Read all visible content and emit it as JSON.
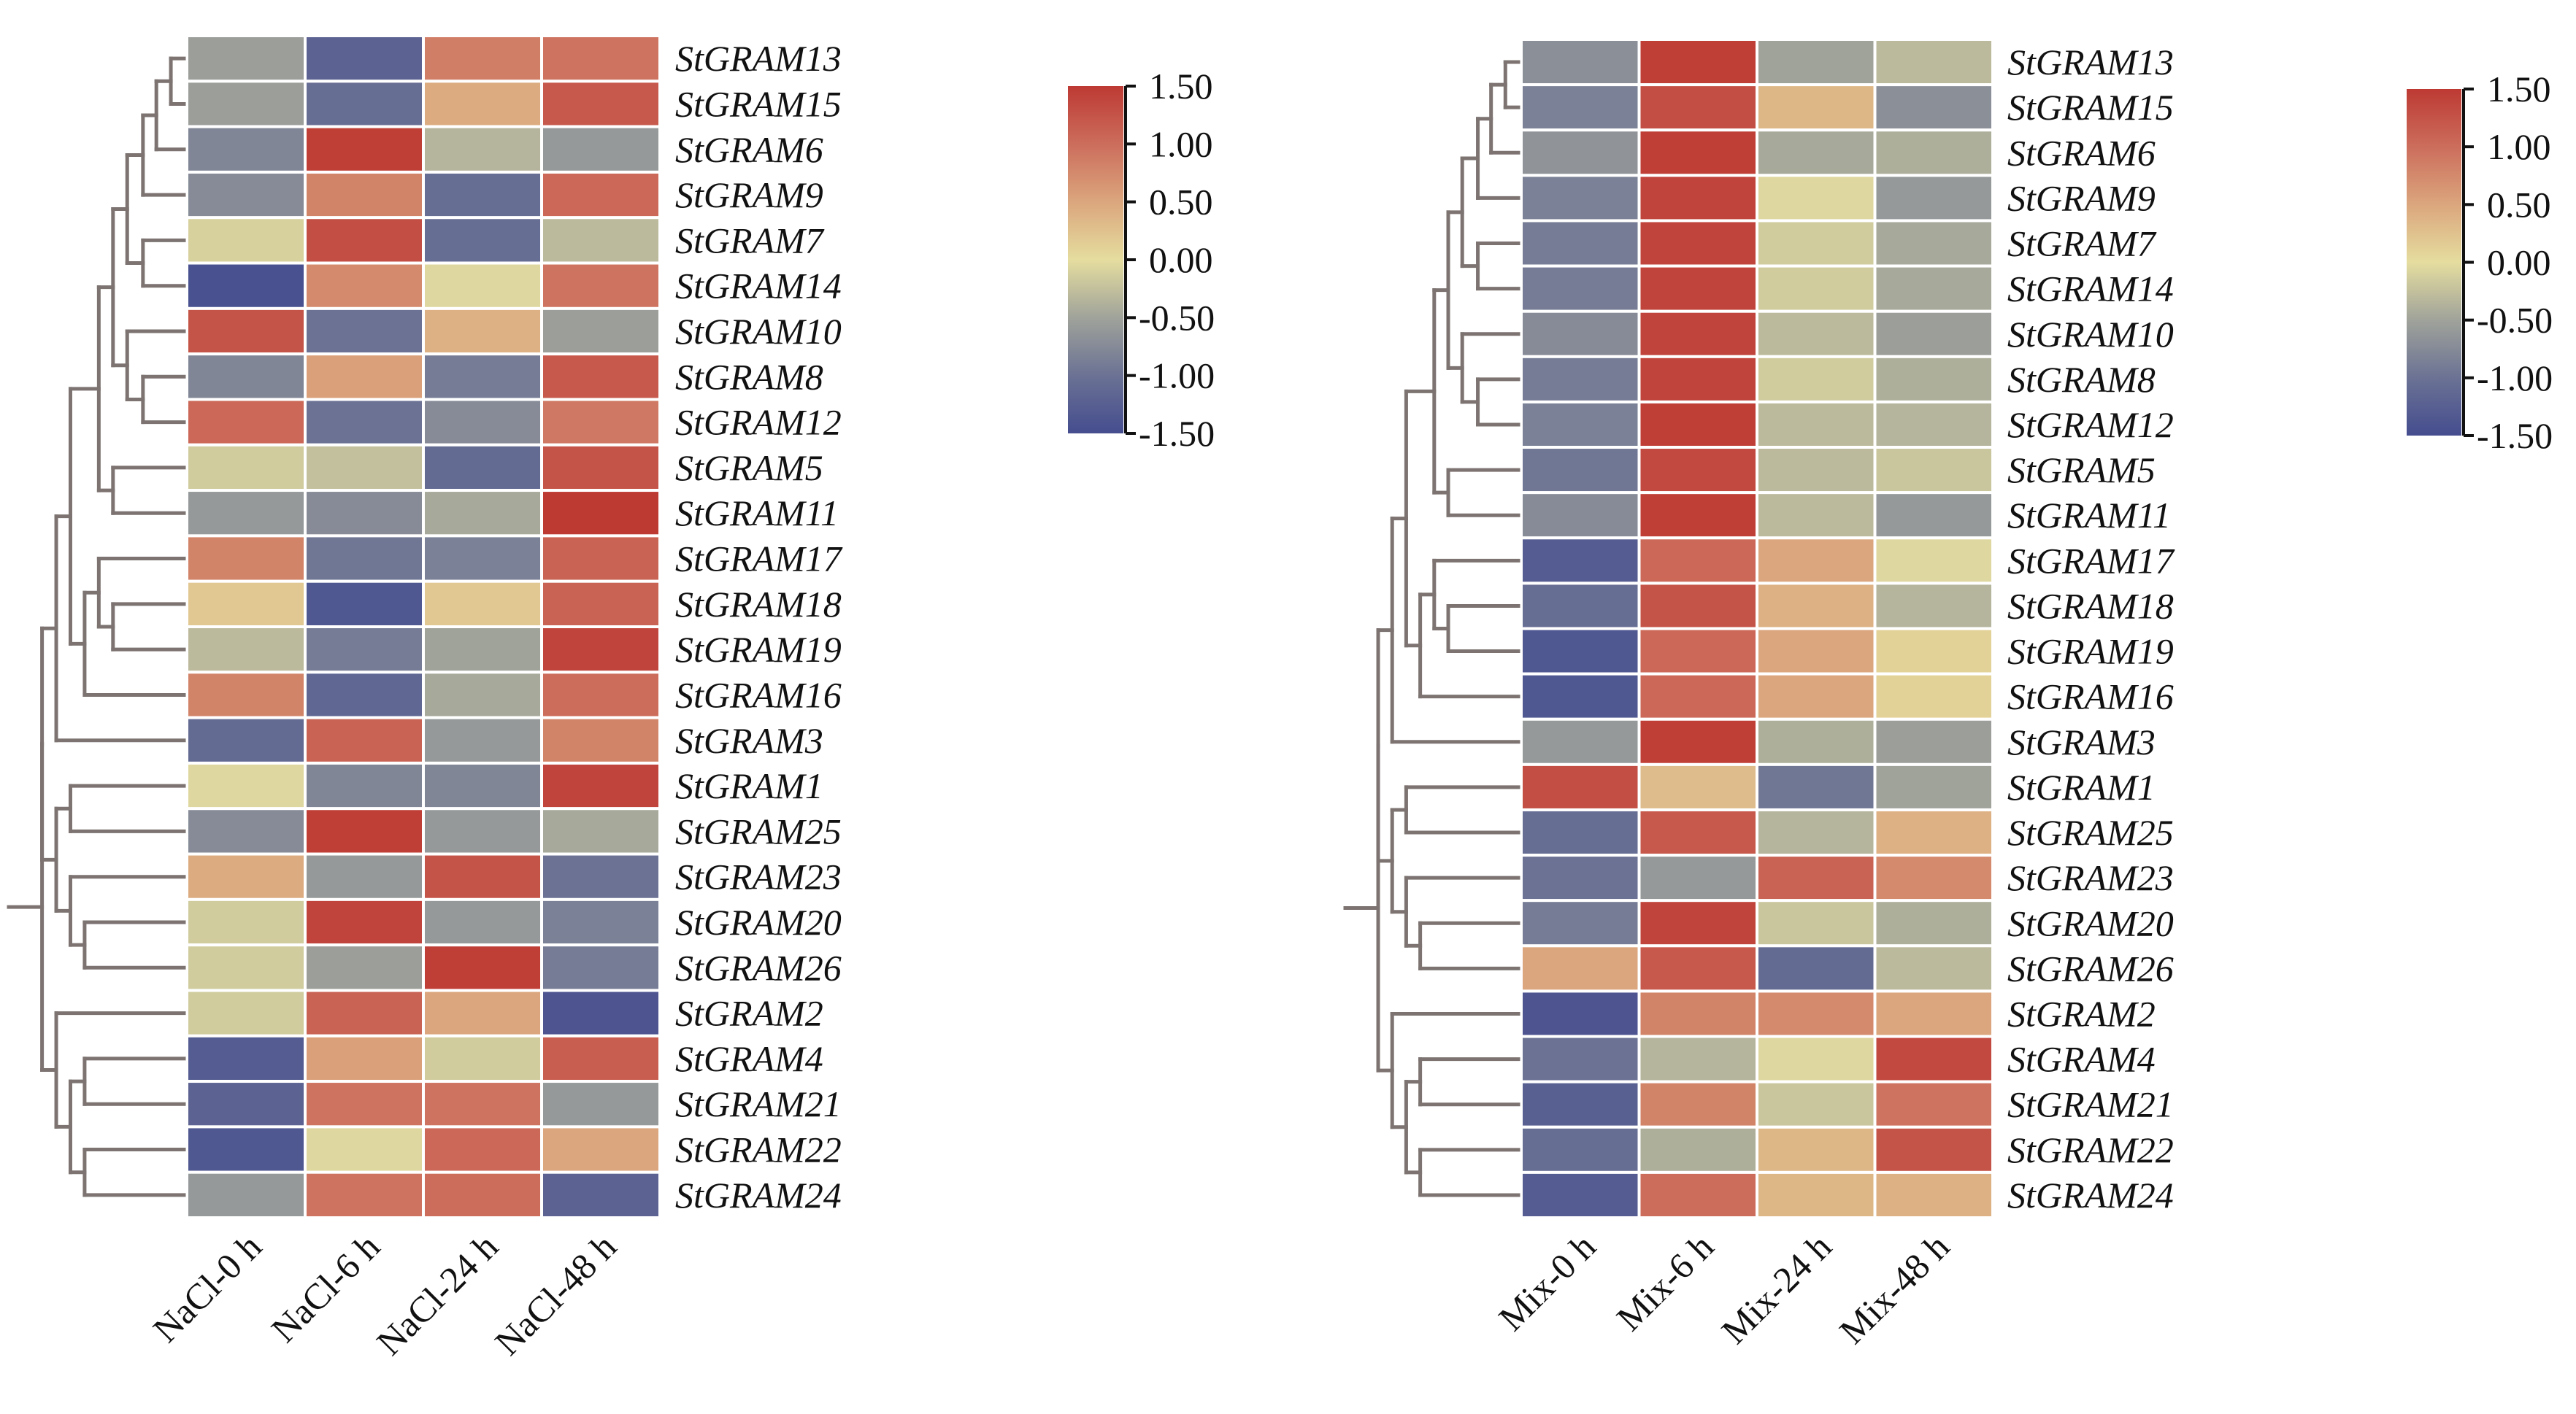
{
  "chart_data": [
    {
      "type": "heatmap",
      "title": "",
      "condition": "NaCl",
      "columns": [
        "NaCl-0 h",
        "NaCl-6 h",
        "NaCl-24 h",
        "NaCl-48 h"
      ],
      "rows": [
        "StGRAM13",
        "StGRAM15",
        "StGRAM6",
        "StGRAM9",
        "StGRAM7",
        "StGRAM14",
        "StGRAM10",
        "StGRAM8",
        "StGRAM12",
        "StGRAM5",
        "StGRAM11",
        "StGRAM17",
        "StGRAM18",
        "StGRAM19",
        "StGRAM16",
        "StGRAM3",
        "StGRAM1",
        "StGRAM25",
        "StGRAM23",
        "StGRAM20",
        "StGRAM26",
        "StGRAM2",
        "StGRAM4",
        "StGRAM21",
        "StGRAM22",
        "StGRAM24"
      ],
      "values": [
        [
          -0.55,
          -1.2,
          0.85,
          0.95
        ],
        [
          -0.55,
          -1.05,
          0.45,
          1.2
        ],
        [
          -0.8,
          1.45,
          -0.35,
          -0.6
        ],
        [
          -0.75,
          0.8,
          -1.05,
          1.05
        ],
        [
          -0.1,
          1.3,
          -1.05,
          -0.3
        ],
        [
          -1.45,
          0.75,
          -0.05,
          0.95
        ],
        [
          1.25,
          -1.0,
          0.4,
          -0.55
        ],
        [
          -0.8,
          0.55,
          -0.9,
          1.2
        ],
        [
          1.05,
          -1.0,
          -0.75,
          0.9
        ],
        [
          -0.15,
          -0.25,
          -1.1,
          1.25
        ],
        [
          -0.6,
          -0.75,
          -0.45,
          1.5
        ],
        [
          0.8,
          -0.95,
          -0.85,
          1.1
        ],
        [
          0.2,
          -1.35,
          0.2,
          1.1
        ],
        [
          -0.3,
          -0.9,
          -0.5,
          1.4
        ],
        [
          0.8,
          -1.15,
          -0.45,
          1.0
        ],
        [
          -1.1,
          1.1,
          -0.6,
          0.8
        ],
        [
          -0.05,
          -0.8,
          -0.8,
          1.4
        ],
        [
          -0.75,
          1.45,
          -0.6,
          -0.45
        ],
        [
          0.45,
          -0.6,
          1.25,
          -1.0
        ],
        [
          -0.15,
          1.4,
          -0.6,
          -0.85
        ],
        [
          -0.15,
          -0.55,
          1.45,
          -0.9
        ],
        [
          -0.15,
          1.1,
          0.5,
          -1.4
        ],
        [
          -1.3,
          0.55,
          -0.15,
          1.15
        ],
        [
          -1.2,
          0.95,
          0.95,
          -0.6
        ],
        [
          -1.35,
          -0.05,
          1.05,
          0.5
        ],
        [
          -0.6,
          0.95,
          1.0,
          -1.2
        ]
      ],
      "colorbar": {
        "range": [
          -1.5,
          1.5
        ],
        "ticks": [
          "1.50",
          "1.00",
          "0.50",
          "0.00",
          "-0.50",
          "-1.00",
          "-1.50"
        ],
        "tick_values": [
          1.5,
          1.0,
          0.5,
          0.0,
          -0.5,
          -1.0,
          -1.5
        ],
        "placement": "right"
      },
      "row_dendrogram": "(((((((StGRAM13:0.083,StGRAM15:0.083):0.175,StGRAM6):0.26,StGRAM9):0.36,(StGRAM7,StGRAM14):0.26):0.45,(StGRAM10,(StGRAM8,StGRAM12):0.26):0.36):0.54,(StGRAM5,StGRAM11):0.45):0.72,((StGRAM17,(StGRAM18,StGRAM19):0.45):0.54,StGRAM16):0.63):0.72,StGRAM3):0.81;((StGRAM1,StGRAM25):0.72,(StGRAM23,(StGRAM20,StGRAM26):0.63):0.72):0.81;(StGRAM2,((StGRAM4,StGRAM21):0.63,(StGRAM22,StGRAM24):0.63):0.72):0.81"
    },
    {
      "type": "heatmap",
      "title": "",
      "condition": "Mix",
      "columns": [
        "Mix-0 h",
        "Mix-6 h",
        "Mix-24 h",
        "Mix-48 h"
      ],
      "rows": [
        "StGRAM13",
        "StGRAM15",
        "StGRAM6",
        "StGRAM9",
        "StGRAM7",
        "StGRAM14",
        "StGRAM10",
        "StGRAM8",
        "StGRAM12",
        "StGRAM5",
        "StGRAM11",
        "StGRAM17",
        "StGRAM18",
        "StGRAM19",
        "StGRAM16",
        "StGRAM3",
        "StGRAM1",
        "StGRAM25",
        "StGRAM23",
        "StGRAM20",
        "StGRAM26",
        "StGRAM2",
        "StGRAM4",
        "StGRAM21",
        "StGRAM22",
        "StGRAM24"
      ],
      "values": [
        [
          -0.7,
          1.45,
          -0.5,
          -0.3
        ],
        [
          -0.85,
          1.3,
          0.35,
          -0.7
        ],
        [
          -0.65,
          1.45,
          -0.45,
          -0.4
        ],
        [
          -0.85,
          1.4,
          -0.05,
          -0.6
        ],
        [
          -0.9,
          1.4,
          -0.15,
          -0.45
        ],
        [
          -0.9,
          1.4,
          -0.15,
          -0.45
        ],
        [
          -0.75,
          1.4,
          -0.3,
          -0.55
        ],
        [
          -0.9,
          1.4,
          -0.15,
          -0.4
        ],
        [
          -0.85,
          1.45,
          -0.3,
          -0.35
        ],
        [
          -0.95,
          1.35,
          -0.3,
          -0.2
        ],
        [
          -0.75,
          1.45,
          -0.3,
          -0.6
        ],
        [
          -1.3,
          1.05,
          0.5,
          -0.05
        ],
        [
          -1.05,
          1.25,
          0.4,
          -0.35
        ],
        [
          -1.35,
          1.05,
          0.5,
          0.1
        ],
        [
          -1.35,
          1.05,
          0.5,
          0.1
        ],
        [
          -0.6,
          1.45,
          -0.4,
          -0.55
        ],
        [
          1.3,
          0.3,
          -0.95,
          -0.5
        ],
        [
          -1.05,
          1.2,
          -0.35,
          0.4
        ],
        [
          -1.0,
          -0.6,
          1.1,
          0.75
        ],
        [
          -0.9,
          1.4,
          -0.2,
          -0.4
        ],
        [
          0.5,
          1.2,
          -1.1,
          -0.3
        ],
        [
          -1.4,
          0.8,
          0.75,
          0.5
        ],
        [
          -1.0,
          -0.35,
          -0.05,
          1.35
        ],
        [
          -1.25,
          0.8,
          -0.2,
          0.95
        ],
        [
          -1.05,
          -0.4,
          0.35,
          1.25
        ],
        [
          -1.3,
          1.0,
          0.35,
          0.4
        ]
      ],
      "colorbar": {
        "range": [
          -1.5,
          1.5
        ],
        "ticks": [
          "1.50",
          "1.00",
          "0.50",
          "0.00",
          "-0.50",
          "-1.00",
          "-1.50"
        ],
        "tick_values": [
          1.5,
          1.0,
          0.5,
          0.0,
          -0.5,
          -1.0,
          -1.5
        ],
        "placement": "right"
      },
      "row_dendrogram": "same as NaCl panel"
    }
  ],
  "tree": {
    "h": 1.0,
    "c": [
      {
        "h": 0.9,
        "c": [
          {
            "h": 0.81,
            "c": [
              {
                "h": 0.72,
                "c": [
                  {
                    "h": 0.54,
                    "c": [
                      {
                        "h": 0.45,
                        "c": [
                          {
                            "h": 0.36,
                            "c": [
                              {
                                "h": 0.26,
                                "c": [
                                  {
                                    "h": 0.175,
                                    "c": [
                                      {
                                        "h": 0.083,
                                        "c": [
                                          {
                                            "leaf": 0
                                          },
                                          {
                                            "leaf": 1
                                          }
                                        ]
                                      },
                                      {
                                        "leaf": 2
                                      }
                                    ]
                                  },
                                  {
                                    "leaf": 3
                                  }
                                ]
                              },
                              {
                                "h": 0.26,
                                "c": [
                                  {
                                    "leaf": 4
                                  },
                                  {
                                    "leaf": 5
                                  }
                                ]
                              }
                            ]
                          },
                          {
                            "h": 0.36,
                            "c": [
                              {
                                "leaf": 6
                              },
                              {
                                "h": 0.26,
                                "c": [
                                  {
                                    "leaf": 7
                                  },
                                  {
                                    "leaf": 8
                                  }
                                ]
                              }
                            ]
                          }
                        ]
                      },
                      {
                        "h": 0.45,
                        "c": [
                          {
                            "leaf": 9
                          },
                          {
                            "leaf": 10
                          }
                        ]
                      }
                    ]
                  },
                  {
                    "h": 0.63,
                    "c": [
                      {
                        "h": 0.54,
                        "c": [
                          {
                            "leaf": 11
                          },
                          {
                            "h": 0.45,
                            "c": [
                              {
                                "leaf": 12
                              },
                              {
                                "leaf": 13
                              }
                            ]
                          }
                        ]
                      },
                      {
                        "leaf": 14
                      }
                    ]
                  }
                ]
              },
              {
                "leaf": 15
              }
            ]
          },
          {
            "h": 0.81,
            "c": [
              {
                "h": 0.72,
                "c": [
                  {
                    "leaf": 16
                  },
                  {
                    "leaf": 17
                  }
                ]
              },
              {
                "h": 0.72,
                "c": [
                  {
                    "leaf": 18
                  },
                  {
                    "h": 0.63,
                    "c": [
                      {
                        "leaf": 19
                      },
                      {
                        "leaf": 20
                      }
                    ]
                  }
                ]
              }
            ]
          }
        ]
      },
      {
        "h": 0.81,
        "c": [
          {
            "leaf": 21
          },
          {
            "h": 0.72,
            "c": [
              {
                "h": 0.63,
                "c": [
                  {
                    "leaf": 22
                  },
                  {
                    "leaf": 23
                  }
                ]
              },
              {
                "h": 0.63,
                "c": [
                  {
                    "leaf": 24
                  },
                  {
                    "leaf": 25
                  }
                ]
              }
            ]
          }
        ]
      }
    ]
  },
  "colors": {
    "low": "#454d8f",
    "neg1": "#6b7294",
    "neg05": "#a0a39a",
    "zero": "#e5dd9f",
    "pos05": "#dba67d",
    "pos1": "#cc6d5c",
    "high": "#bd3a33",
    "dendrogram": "#7d7472"
  }
}
